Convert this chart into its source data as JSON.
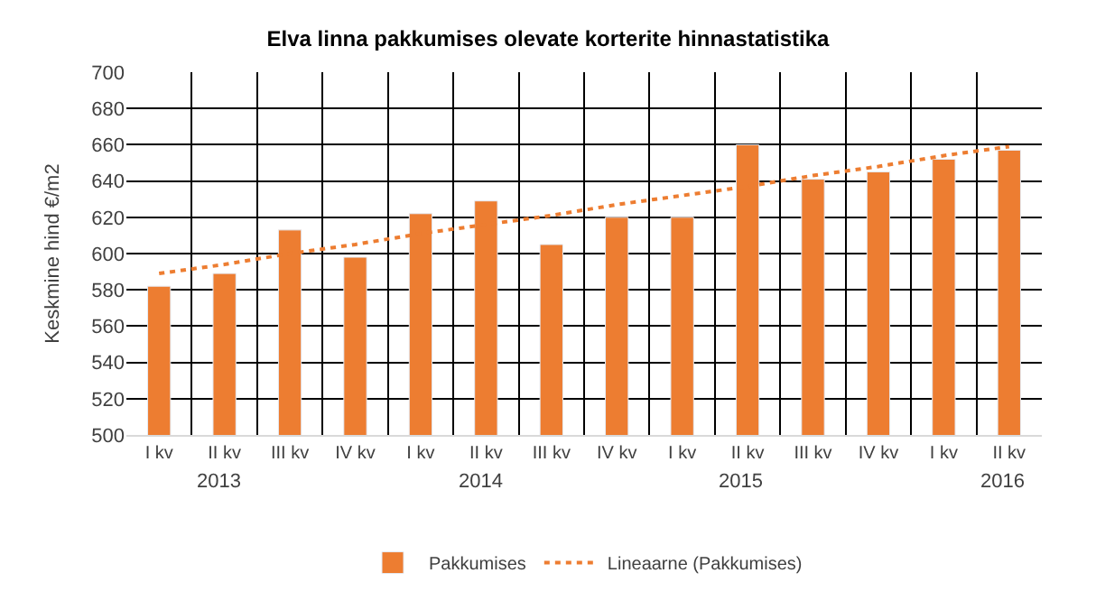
{
  "chart_data": {
    "type": "bar",
    "title": "Elva linna pakkumises olevate korterite hinnastatistika",
    "ylabel": "Keskmine hind €/m2",
    "categories": [
      "I kv",
      "II kv",
      "III kv",
      "IV kv",
      "I kv",
      "II kv",
      "III kv",
      "IV kv",
      "I kv",
      "II kv",
      "III kv",
      "IV kv",
      "I kv",
      "II kv"
    ],
    "series": [
      {
        "name": "Pakkumises",
        "color": "#ed7d31",
        "values": [
          582,
          589,
          613,
          598,
          622,
          629,
          605,
          620,
          620,
          660,
          641,
          645,
          652,
          657
        ]
      },
      {
        "name": "Lineaarne (Pakkumises)",
        "type": "line",
        "line_style": "dotted",
        "color": "#ed7d31",
        "values": [
          589,
          594,
          600,
          605,
          611,
          616,
          621,
          627,
          632,
          637,
          643,
          648,
          654,
          659
        ]
      }
    ],
    "annotations": [
      "2013",
      "2014",
      "2015",
      "2016"
    ],
    "ylim": [
      500,
      700
    ],
    "yticks": [
      500,
      520,
      540,
      560,
      580,
      600,
      620,
      640,
      660,
      680,
      700
    ],
    "grid": true,
    "legend": "bottom"
  }
}
